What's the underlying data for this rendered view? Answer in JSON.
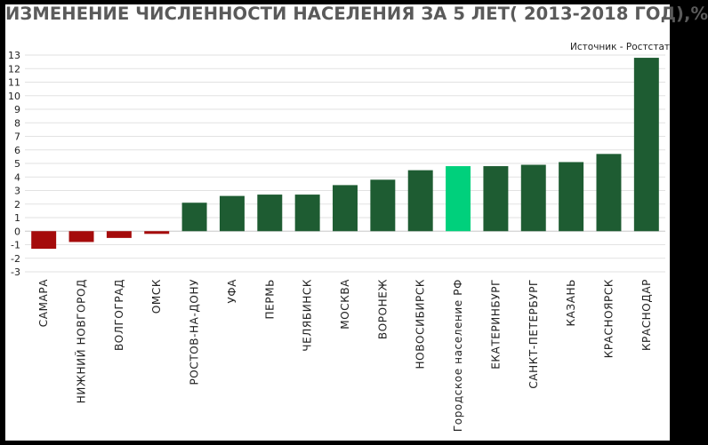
{
  "title": "ИЗМЕНЕНИЕ ЧИСЛЕННОСТИ НАСЕЛЕНИЯ ЗА 5 ЛЕТ( 2013-2018 ГОД),%",
  "source": "Источник - Ростстат",
  "colors": {
    "positive": "#1e5c32",
    "negative": "#a50b0b",
    "highlight": "#00d07c",
    "grid": "#e2e2e2",
    "axis_text": "#222222"
  },
  "chart_data": {
    "type": "bar",
    "title": "ИЗМЕНЕНИЕ ЧИСЛЕННОСТИ НАСЕЛЕНИЯ ЗА 5 ЛЕТ( 2013-2018 ГОД),%",
    "xlabel": "",
    "ylabel": "",
    "ylim": [
      -3,
      13
    ],
    "yticks": [
      -3,
      -2,
      -1,
      0,
      1,
      2,
      3,
      4,
      5,
      6,
      7,
      8,
      9,
      10,
      11,
      12,
      13
    ],
    "grid": true,
    "legend": "none",
    "highlight_category": "Городское население РФ",
    "categories": [
      "САМАРА",
      "НИЖНИЙ НОВГОРОД",
      "ВОЛГОГРАД",
      "ОМСК",
      "РОСТОВ-НА-ДОНУ",
      "УФА",
      "ПЕРМЬ",
      "ЧЕЛЯБИНСК",
      "МОСКВА",
      "ВОРОНЕЖ",
      "НОВОСИБИРСК",
      "Городское население РФ",
      "ЕКАТЕРИНБУРГ",
      "САНКТ-ПЕТЕРБУРГ",
      "КАЗАНЬ",
      "КРАСНОЯРСК",
      "КРАСНОДАР"
    ],
    "values": [
      -1.3,
      -0.8,
      -0.5,
      -0.2,
      2.1,
      2.6,
      2.7,
      2.7,
      3.4,
      3.8,
      4.5,
      4.8,
      4.8,
      4.9,
      5.1,
      5.7,
      12.8
    ]
  }
}
